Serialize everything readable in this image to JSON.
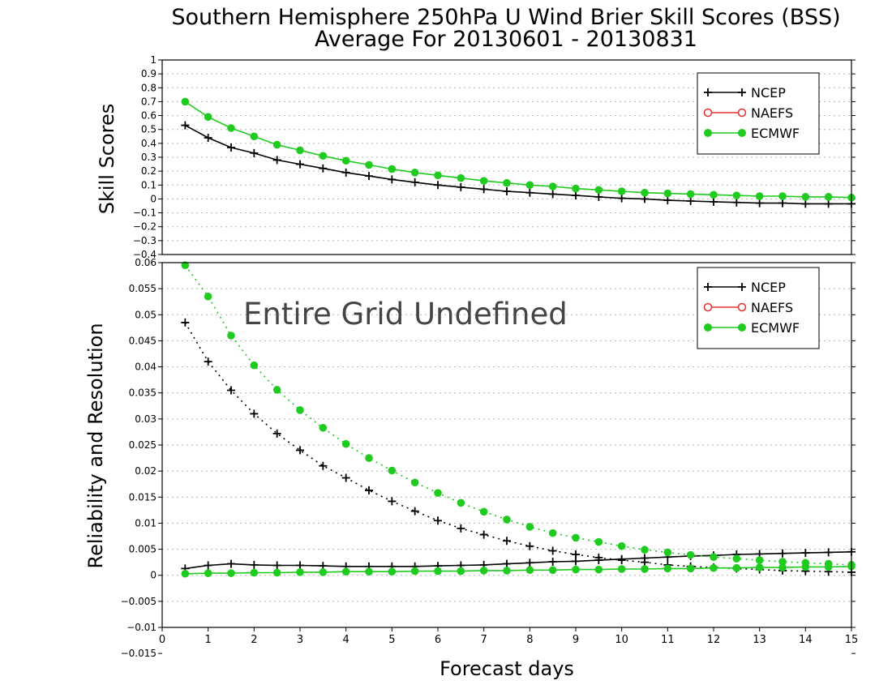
{
  "title_line1": "Southern Hemisphere 250hPa U Wind Brier Skill Scores (BSS)",
  "title_line2": "Average For 20130601 - 20130831",
  "colors": {
    "ncep": "#000000",
    "naefs": "#e83030",
    "ecmwf": "#1ecb1e"
  },
  "chart_data": [
    {
      "type": "line",
      "ylabel": "Skill Scores",
      "ylim": [
        -0.4,
        1
      ],
      "xlim": [
        0,
        15
      ],
      "yticks": [
        "1",
        "0.9",
        "0.8",
        "0.7",
        "0.6",
        "0.5",
        "0.4",
        "0.3",
        "0.2",
        "0.1",
        "0",
        "−0.1",
        "−0.2",
        "−0.3",
        "−0.4"
      ],
      "grid": true,
      "legend": [
        "NCEP",
        "NAEFS",
        "ECMWF"
      ],
      "legend_position": "top-right",
      "x": [
        0.5,
        1,
        1.5,
        2,
        2.5,
        3,
        3.5,
        4,
        4.5,
        5,
        5.5,
        6,
        6.5,
        7,
        7.5,
        8,
        8.5,
        9,
        9.5,
        10,
        10.5,
        11,
        11.5,
        12,
        12.5,
        13,
        13.5,
        14,
        14.5,
        15
      ],
      "series": [
        {
          "name": "NCEP",
          "style": "solid",
          "marker": "plus",
          "values": [
            0.53,
            0.44,
            0.37,
            0.33,
            0.28,
            0.25,
            0.22,
            0.19,
            0.165,
            0.14,
            0.12,
            0.1,
            0.085,
            0.07,
            0.055,
            0.045,
            0.035,
            0.025,
            0.015,
            0.005,
            0.0,
            -0.01,
            -0.015,
            -0.02,
            -0.025,
            -0.03,
            -0.03,
            -0.035,
            -0.035,
            -0.035
          ]
        },
        {
          "name": "ECMWF",
          "style": "solid",
          "marker": "dot",
          "values": [
            0.7,
            0.59,
            0.51,
            0.45,
            0.39,
            0.35,
            0.31,
            0.275,
            0.245,
            0.215,
            0.19,
            0.17,
            0.15,
            0.13,
            0.115,
            0.1,
            0.09,
            0.075,
            0.065,
            0.055,
            0.045,
            0.04,
            0.035,
            0.03,
            0.025,
            0.02,
            0.02,
            0.015,
            0.015,
            0.01
          ]
        }
      ]
    },
    {
      "type": "line",
      "ylabel": "Reliability and Resolution",
      "xlabel": "Forecast days",
      "ylim": [
        -0.01,
        0.06
      ],
      "xlim": [
        0,
        15
      ],
      "xticks": [
        "0",
        "1",
        "2",
        "3",
        "4",
        "5",
        "6",
        "7",
        "8",
        "9",
        "10",
        "11",
        "12",
        "13",
        "14",
        "15"
      ],
      "yticks": [
        "0.06",
        "0.055",
        "0.05",
        "0.045",
        "0.04",
        "0.035",
        "0.03",
        "0.025",
        "0.02",
        "0.015",
        "0.01",
        "0.005",
        "0",
        "−0.005",
        "−0.01",
        "−0.015"
      ],
      "grid": true,
      "legend": [
        "NCEP",
        "NAEFS",
        "ECMWF"
      ],
      "legend_position": "top-right",
      "annotation": "Entire Grid Undefined",
      "x": [
        0.5,
        1,
        1.5,
        2,
        2.5,
        3,
        3.5,
        4,
        4.5,
        5,
        5.5,
        6,
        6.5,
        7,
        7.5,
        8,
        8.5,
        9,
        9.5,
        10,
        10.5,
        11,
        11.5,
        12,
        12.5,
        13,
        13.5,
        14,
        14.5,
        15
      ],
      "series": [
        {
          "name": "NCEP",
          "role": "resolution",
          "style": "dotted",
          "marker": "plus",
          "values": [
            0.0485,
            0.041,
            0.0355,
            0.031,
            0.0272,
            0.024,
            0.021,
            0.0187,
            0.0163,
            0.0142,
            0.0123,
            0.0105,
            0.009,
            0.0078,
            0.0066,
            0.0056,
            0.0047,
            0.004,
            0.0034,
            0.0029,
            0.0025,
            0.002,
            0.0017,
            0.0015,
            0.0013,
            0.0011,
            0.0009,
            0.0008,
            0.0007,
            0.0006
          ]
        },
        {
          "name": "NCEP",
          "role": "reliability",
          "style": "solid",
          "marker": "plus",
          "values": [
            0.0013,
            0.0019,
            0.0022,
            0.002,
            0.0019,
            0.0019,
            0.0018,
            0.0017,
            0.0017,
            0.0017,
            0.0017,
            0.0018,
            0.0019,
            0.002,
            0.0022,
            0.0024,
            0.0026,
            0.0027,
            0.0029,
            0.0031,
            0.0033,
            0.0035,
            0.0037,
            0.0038,
            0.004,
            0.0041,
            0.0042,
            0.0043,
            0.0044,
            0.0045
          ]
        },
        {
          "name": "ECMWF",
          "role": "resolution",
          "style": "dotted",
          "marker": "dot",
          "values": [
            0.0595,
            0.0535,
            0.046,
            0.0403,
            0.0356,
            0.0317,
            0.0283,
            0.0252,
            0.0225,
            0.0201,
            0.0178,
            0.0158,
            0.0139,
            0.0122,
            0.0107,
            0.0093,
            0.0081,
            0.0072,
            0.0064,
            0.0056,
            0.0049,
            0.0044,
            0.0039,
            0.0035,
            0.0032,
            0.0029,
            0.0026,
            0.0024,
            0.0022,
            0.002
          ]
        },
        {
          "name": "ECMWF",
          "role": "reliability",
          "style": "solid",
          "marker": "dot",
          "values": [
            0.0003,
            0.0004,
            0.0004,
            0.0005,
            0.0005,
            0.0006,
            0.0006,
            0.0007,
            0.0007,
            0.0007,
            0.0008,
            0.0008,
            0.0008,
            0.0009,
            0.0009,
            0.001,
            0.001,
            0.0011,
            0.0011,
            0.0012,
            0.0012,
            0.0013,
            0.0013,
            0.0014,
            0.0014,
            0.0015,
            0.0015,
            0.0016,
            0.0016,
            0.0017
          ]
        }
      ]
    }
  ]
}
